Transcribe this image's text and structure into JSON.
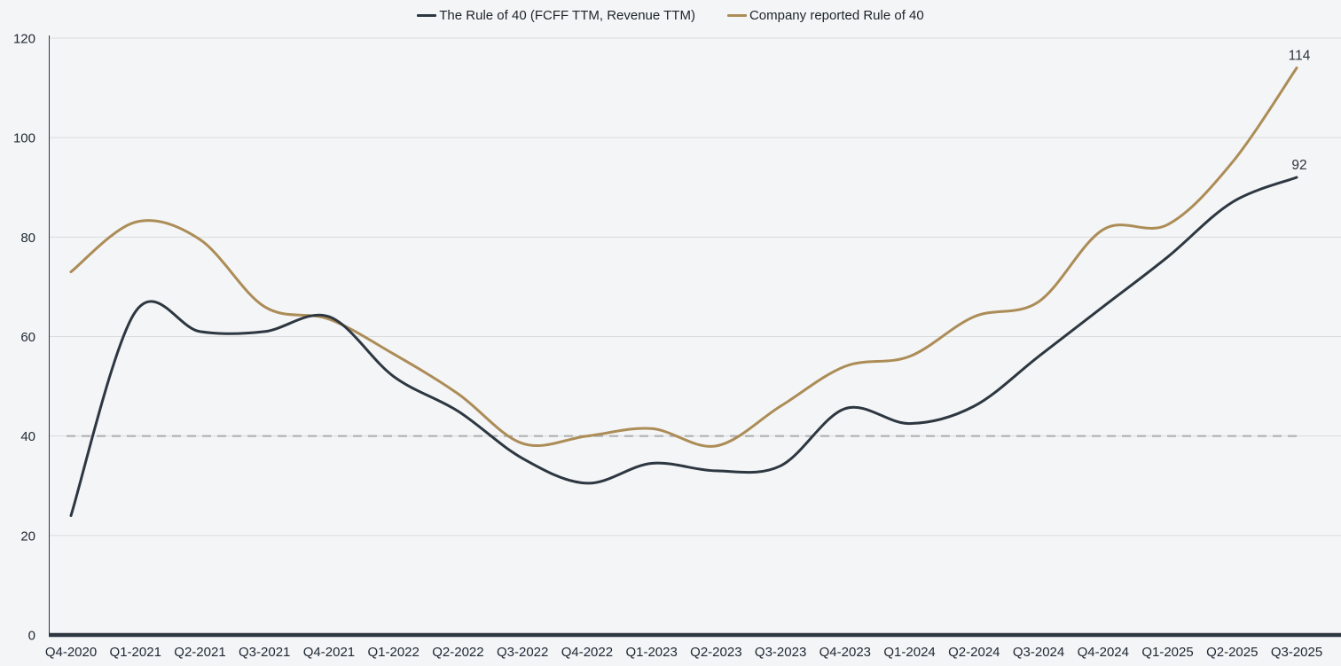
{
  "page": {
    "background": "#f4f5f6"
  },
  "chart_data": {
    "type": "line",
    "title": "",
    "categories": [
      "Q4-2020",
      "Q1-2021",
      "Q2-2021",
      "Q3-2021",
      "Q4-2021",
      "Q1-2022",
      "Q2-2022",
      "Q3-2022",
      "Q4-2022",
      "Q1-2023",
      "Q2-2023",
      "Q3-2023",
      "Q4-2023",
      "Q1-2024",
      "Q2-2024",
      "Q3-2024",
      "Q4-2024",
      "Q1-2025",
      "Q2-2025",
      "Q3-2025"
    ],
    "series": [
      {
        "name": "The Rule of 40 (FCFF TTM, Revenue TTM)",
        "color": "#2d3741",
        "values": [
          24,
          65,
          61,
          61,
          64,
          52,
          45,
          35.5,
          30.5,
          34.5,
          33,
          34,
          45.5,
          42.5,
          46,
          56,
          66,
          76,
          87,
          92
        ],
        "end_label": "92"
      },
      {
        "name": "Company reported Rule of 40",
        "color": "#ac8c57",
        "values": [
          73,
          83,
          79.5,
          66,
          63.5,
          56.5,
          48.5,
          38.5,
          40,
          41.5,
          38,
          46,
          54,
          56,
          64,
          67,
          81.5,
          82.5,
          95,
          114
        ],
        "end_label": "114"
      }
    ],
    "ylim": [
      0,
      120
    ],
    "yticks": [
      0,
      20,
      40,
      60,
      80,
      100,
      120
    ],
    "reference_line": {
      "value": 40,
      "style": "dashed"
    },
    "legend_position": "top",
    "grid": "horizontal-only"
  },
  "style": {
    "grid_color": "#d9dbdd",
    "axis_color": "#2d3741",
    "dashed_line_color": "#b0b1b3",
    "tick_label_color": "#1d2633",
    "end_label_color": "#2b333c",
    "line_width": 3
  }
}
